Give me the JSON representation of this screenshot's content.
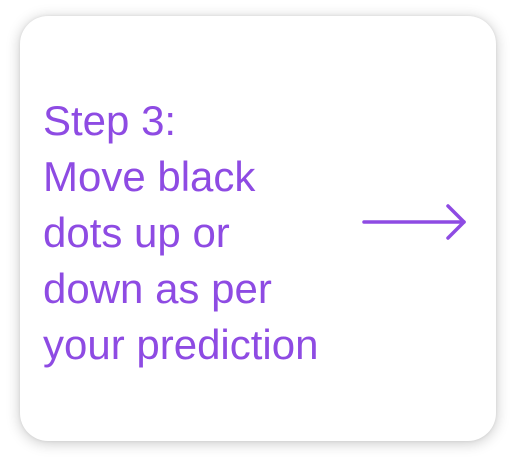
{
  "card": {
    "lines": [
      "Step 3:",
      "Move black",
      "dots up or",
      "down as per",
      "your prediction"
    ]
  },
  "arrow": {
    "icon": "arrow-right-icon",
    "color": "#8e4be3"
  },
  "colors": {
    "accent": "#8e4be3",
    "background": "#ffffff"
  }
}
